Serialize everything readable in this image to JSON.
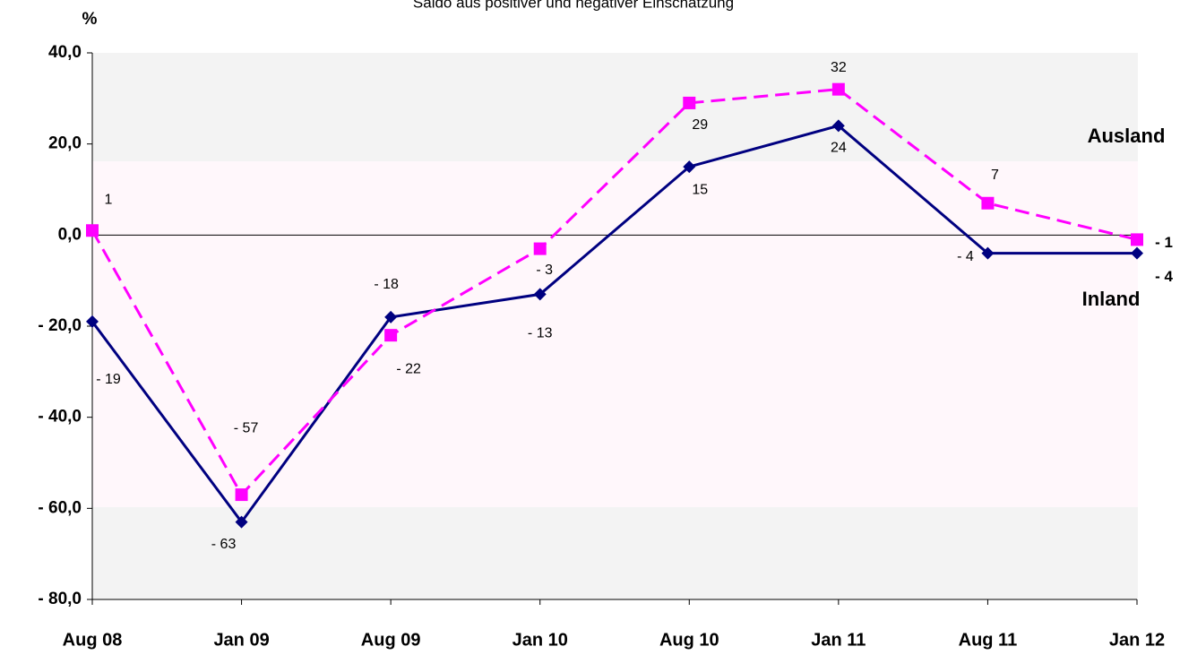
{
  "chart_data": {
    "type": "line",
    "title": "Saldo aus positiver und negativer Einschätzung",
    "y_label": "%",
    "categories": [
      "Aug 08",
      "Jan 09",
      "Aug 09",
      "Jan 10",
      "Aug 10",
      "Jan 11",
      "Aug 11",
      "Jan 12"
    ],
    "series": [
      {
        "name": "Inland",
        "color": "#000080",
        "dashed": false,
        "marker": "diamond",
        "values": [
          -19,
          -63,
          -18,
          -13,
          15,
          24,
          -4,
          -4
        ],
        "value_labels": [
          "- 19",
          "- 63",
          "- 18",
          "- 13",
          "15",
          "24",
          "- 4",
          "- 4"
        ]
      },
      {
        "name": "Ausland",
        "color": "#ff00ff",
        "dashed": true,
        "marker": "square",
        "values": [
          1,
          -57,
          -22,
          -3,
          29,
          32,
          7,
          -1
        ],
        "value_labels": [
          "1",
          "- 57",
          "- 22",
          "- 3",
          "29",
          "32",
          "7",
          "- 1"
        ]
      }
    ],
    "ylim": [
      -80,
      40
    ],
    "yticks": [
      {
        "value": -80,
        "label": "- 80,0"
      },
      {
        "value": -60,
        "label": "- 60,0"
      },
      {
        "value": -40,
        "label": "- 40,0"
      },
      {
        "value": -20,
        "label": "- 20,0"
      },
      {
        "value": 0,
        "label": "0,0"
      },
      {
        "value": 20,
        "label": "20,0"
      },
      {
        "value": 40,
        "label": "40,0"
      }
    ],
    "grid": false
  }
}
